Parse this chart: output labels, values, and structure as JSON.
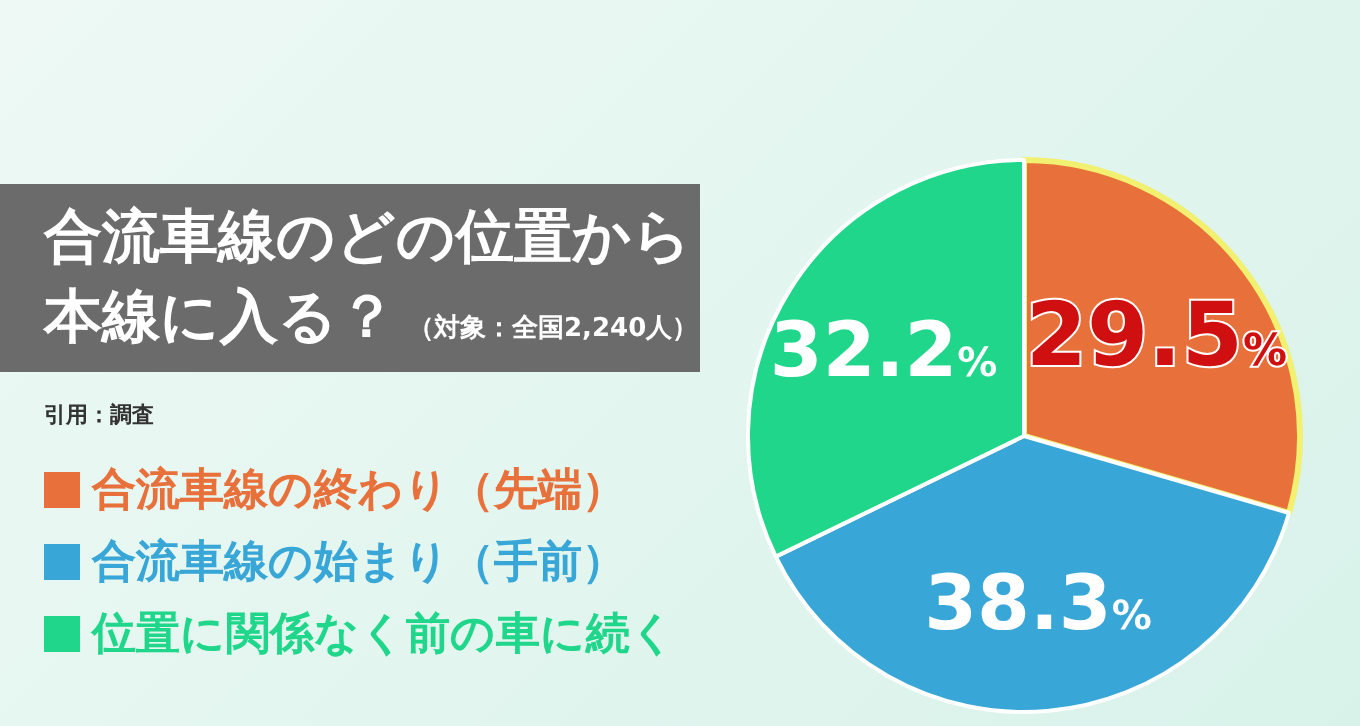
{
  "chart_data": {
    "type": "pie",
    "title": "合流車線のどの位置から本線に入る？",
    "subtitle": "（対象：全国2,240人）",
    "annotations": [
      "引用：調査"
    ],
    "categories": [
      "合流車線の終わり（先端）",
      "合流車線の始まり（手前）",
      "位置に関係なく前の車に続く"
    ],
    "values": [
      29.5,
      38.3,
      32.2
    ],
    "colors": [
      "#e8703a",
      "#38a6d6",
      "#1fd68a"
    ],
    "value_labels": [
      "29.5%",
      "38.3%",
      "32.2%"
    ],
    "legend": "left"
  }
}
